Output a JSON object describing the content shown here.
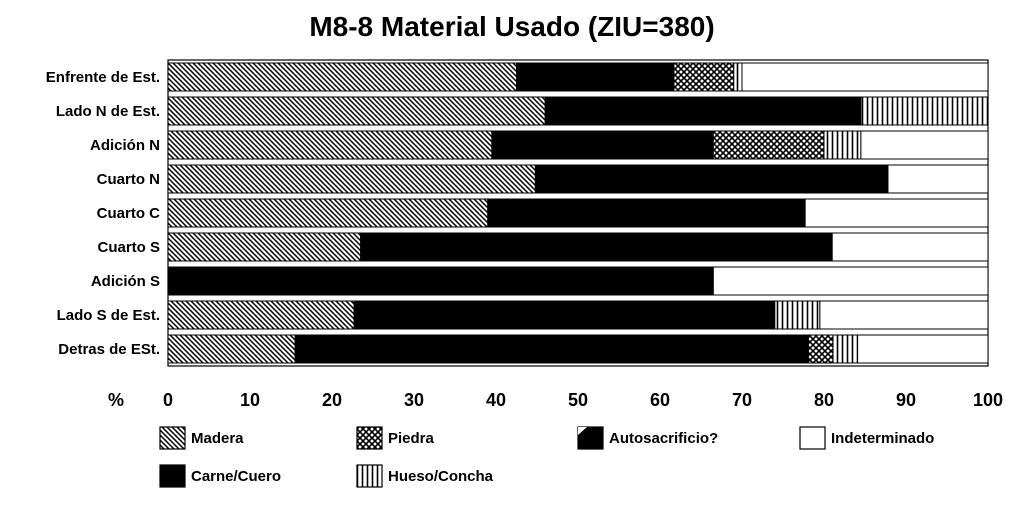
{
  "chart_data": {
    "type": "bar",
    "orientation": "horizontal",
    "stacked": true,
    "title": "M8-8 Material Usado (ZIU=380)",
    "xlabel": "%",
    "xlim": [
      0,
      100
    ],
    "xticks": [
      0,
      10,
      20,
      30,
      40,
      50,
      60,
      70,
      80,
      90,
      100
    ],
    "categories": [
      "Enfrente de Est.",
      "Lado N de Est.",
      "Adición N",
      "Cuarto N",
      "Cuarto C",
      "Cuarto S",
      "Adición S",
      "Lado S de Est.",
      "Detras de ESt."
    ],
    "series": [
      {
        "name": "Madera",
        "pattern": "diagonal",
        "values": [
          42.5,
          46,
          39.5,
          44.8,
          39,
          23.5,
          0,
          22.7,
          15.5
        ]
      },
      {
        "name": "Carne/Cuero",
        "pattern": "solid-black",
        "values": [
          19.2,
          38.5,
          27,
          43,
          38.7,
          57.5,
          66.5,
          51.3,
          62.6
        ]
      },
      {
        "name": "Piedra",
        "pattern": "crosshatch",
        "values": [
          7.3,
          0,
          13.5,
          0,
          0,
          0,
          0,
          0,
          3
        ]
      },
      {
        "name": "Autosacrificio?",
        "pattern": "black-notch",
        "values": [
          0,
          0,
          0,
          0,
          0,
          0,
          0,
          0,
          0
        ]
      },
      {
        "name": "Hueso/Concha",
        "pattern": "vertical",
        "values": [
          1,
          15.5,
          4.5,
          0,
          0,
          0,
          0,
          5.5,
          3
        ]
      },
      {
        "name": "Indeterminado",
        "pattern": "white",
        "values": [
          30,
          0,
          15.5,
          12.2,
          22.3,
          19,
          33.5,
          20.5,
          15.9
        ]
      }
    ],
    "legend_position": "bottom",
    "legend_order": [
      "Madera",
      "Piedra",
      "Autosacrificio?",
      "Indeterminado",
      "Carne/Cuero",
      "Hueso/Concha"
    ],
    "grid": false
  }
}
